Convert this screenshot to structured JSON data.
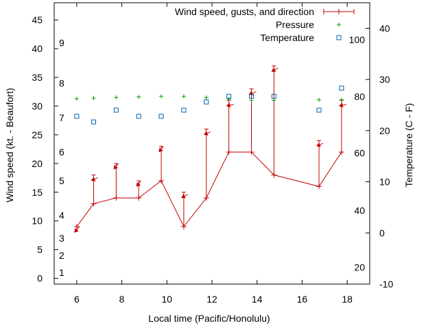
{
  "chart_data": {
    "type": "line",
    "title": "",
    "xlabel": "Local time (Pacific/Honolulu)",
    "ylabel": "Wind speed (kt. - Beaufort)",
    "y2label": "Temperature (C - F)",
    "xlim": [
      5,
      19
    ],
    "ylim": [
      -1,
      48
    ],
    "y2lim": [
      -10,
      45
    ],
    "x_ticks": [
      "6",
      "8",
      "10",
      "12",
      "14",
      "16",
      "18"
    ],
    "y_ticks": [
      "0",
      "5",
      "10",
      "15",
      "20",
      "25",
      "30",
      "35",
      "40",
      "45"
    ],
    "y2_ticks": [
      "-10",
      "0",
      "10",
      "20",
      "30",
      "40"
    ],
    "beaufort_ticks": [
      {
        "label": "1",
        "wind": 1
      },
      {
        "label": "2",
        "wind": 4
      },
      {
        "label": "3",
        "wind": 7
      },
      {
        "label": "4",
        "wind": 11
      },
      {
        "label": "5",
        "wind": 17
      },
      {
        "label": "6",
        "wind": 22
      },
      {
        "label": "7",
        "wind": 28
      },
      {
        "label": "8",
        "wind": 34
      },
      {
        "label": "9",
        "wind": 41
      }
    ],
    "fahrenheit_ticks": [
      {
        "label": "20",
        "celsius": -6.7
      },
      {
        "label": "40",
        "celsius": 4.4
      },
      {
        "label": "60",
        "celsius": 15.6
      },
      {
        "label": "80",
        "celsius": 26.7
      },
      {
        "label": "100",
        "celsius": 37.8
      }
    ],
    "legend": [
      {
        "label": "Wind speed, gusts, and direction",
        "color": "#c00000"
      },
      {
        "label": "Pressure",
        "color": "#00a000"
      },
      {
        "label": "Temperature",
        "color": "#0060b0"
      }
    ],
    "x": [
      6,
      6.75,
      7.75,
      8.75,
      9.75,
      10.75,
      11.75,
      12.75,
      13.75,
      14.75,
      16.75,
      17.75
    ],
    "series": [
      {
        "name": "Wind speed",
        "values": [
          9,
          13,
          14,
          14,
          17,
          9,
          14,
          22,
          22,
          18,
          16,
          22
        ],
        "gusts": [
          9,
          18,
          20,
          17,
          23,
          15,
          26,
          31,
          33,
          37,
          24,
          31
        ],
        "direction_arrows": [
          {
            "dx": 7,
            "dy": -8
          },
          {
            "dx": 9,
            "dy": -4
          },
          {
            "dx": 6,
            "dy": -8
          },
          {
            "dx": 6,
            "dy": -7
          },
          {
            "dx": 6,
            "dy": -8
          },
          {
            "dx": 9,
            "dy": -5
          },
          {
            "dx": 9,
            "dy": -4
          },
          {
            "dx": 10,
            "dy": -2
          },
          {
            "dx": 10,
            "dy": -4
          },
          {
            "dx": 9,
            "dy": -5
          },
          {
            "dx": 9,
            "dy": -4
          },
          {
            "dx": 10,
            "dy": -2
          }
        ]
      },
      {
        "name": "Pressure",
        "values": [
          31.3,
          31.4,
          31.5,
          31.6,
          31.7,
          31.7,
          31.5,
          31.2,
          31.0,
          31.0,
          31.1,
          31.1
        ]
      },
      {
        "name": "Temperature",
        "values": [
          22.8,
          21.7,
          24.0,
          22.8,
          22.8,
          24.0,
          25.6,
          26.7,
          26.7,
          26.7,
          24.0,
          28.3
        ]
      }
    ]
  }
}
